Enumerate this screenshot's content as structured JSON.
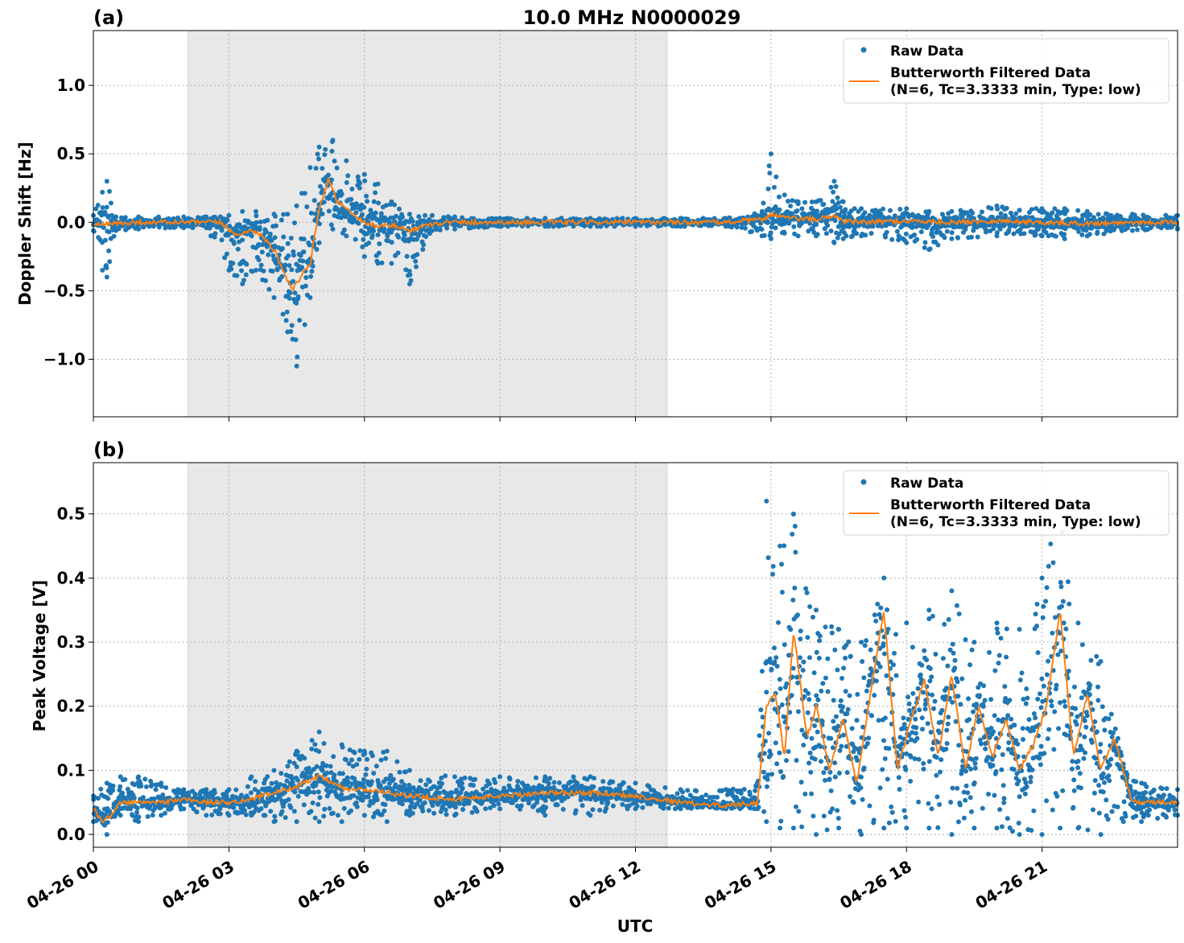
{
  "figure": {
    "title": "10.0 MHz N0000029",
    "xlabel": "UTC"
  },
  "colors": {
    "raw": "#1f77b4",
    "filtered": "#ff7f0e",
    "shade": "#e8e8e8",
    "grid": "#b0b0b0"
  },
  "chart_data": [
    {
      "panel": "(a)",
      "type": "scatter",
      "title": "10.0 MHz N0000029",
      "xlabel": "",
      "ylabel": "Doppler Shift [Hz]",
      "xlim": [
        0,
        24
      ],
      "ylim": [
        -1.42,
        1.4
      ],
      "x_ticks": [
        0,
        3,
        6,
        9,
        12,
        15,
        18,
        21
      ],
      "y_ticks": [
        -1.0,
        -0.5,
        0.0,
        0.5,
        1.0
      ],
      "y_tick_labels": [
        "−1.0",
        "−0.5",
        "0.0",
        "0.5",
        "1.0"
      ],
      "grid": true,
      "shaded_interval": [
        2.1,
        12.7
      ],
      "legend": {
        "placement": "top-right",
        "entries": [
          {
            "label": "Raw Data",
            "marker": "dot",
            "color": "#1f77b4"
          },
          {
            "label": "Butterworth Filtered Data",
            "label2": "(N=6, Tc=3.3333 min, Type: low)",
            "marker": "line",
            "color": "#ff7f0e"
          }
        ]
      },
      "series": [
        {
          "name": "Raw Data",
          "kind": "scatter-envelope",
          "x": [
            0,
            0.2,
            0.3,
            0.5,
            1,
            2,
            2.5,
            3,
            3.3,
            3.6,
            4,
            4.3,
            4.5,
            4.8,
            5,
            5.3,
            5.6,
            6,
            6.3,
            6.6,
            7,
            7.5,
            8,
            9,
            10,
            11,
            12,
            13,
            14,
            14.8,
            15,
            15.3,
            15.6,
            16,
            16.4,
            16.6,
            17,
            18,
            18.5,
            19,
            20,
            21,
            21.5,
            22,
            23,
            24
          ],
          "upper": [
            0.05,
            0.22,
            0.3,
            0.04,
            0.04,
            0.04,
            0.04,
            0.05,
            0.08,
            0.08,
            0.06,
            0.06,
            0.12,
            0.4,
            0.55,
            0.6,
            0.45,
            0.35,
            0.28,
            0.15,
            0.06,
            0.05,
            0.04,
            0.03,
            0.03,
            0.03,
            0.03,
            0.03,
            0.03,
            0.08,
            0.5,
            0.2,
            0.15,
            0.15,
            0.3,
            0.15,
            0.1,
            0.1,
            0.08,
            0.08,
            0.12,
            0.1,
            0.1,
            0.08,
            0.06,
            0.05
          ],
          "lower": [
            -0.06,
            -0.35,
            -0.4,
            -0.06,
            -0.05,
            -0.04,
            -0.04,
            -0.35,
            -0.45,
            -0.35,
            -0.55,
            -0.8,
            -1.05,
            -0.55,
            -0.15,
            -0.05,
            -0.1,
            -0.25,
            -0.3,
            -0.3,
            -0.45,
            -0.06,
            -0.05,
            -0.03,
            -0.03,
            -0.03,
            -0.03,
            -0.03,
            -0.03,
            -0.1,
            -0.12,
            -0.08,
            -0.1,
            -0.1,
            -0.15,
            -0.12,
            -0.1,
            -0.15,
            -0.2,
            -0.12,
            -0.1,
            -0.1,
            -0.12,
            -0.1,
            -0.06,
            -0.05
          ]
        },
        {
          "name": "Butterworth Filtered Data",
          "kind": "line",
          "x": [
            0,
            0.5,
            1,
            2,
            2.8,
            3,
            3.2,
            3.5,
            3.8,
            4,
            4.2,
            4.4,
            4.6,
            4.8,
            5,
            5.1,
            5.2,
            5.4,
            5.6,
            5.8,
            6,
            6.3,
            6.6,
            7,
            7.5,
            8,
            10,
            12,
            14,
            14.8,
            15,
            15.4,
            16,
            16.4,
            16.6,
            17,
            18,
            19,
            20,
            21,
            22,
            23,
            24
          ],
          "y": [
            -0.02,
            -0.01,
            0.0,
            0.0,
            0.0,
            -0.05,
            -0.1,
            -0.05,
            -0.12,
            -0.2,
            -0.35,
            -0.5,
            -0.4,
            -0.3,
            0.1,
            0.2,
            0.32,
            0.15,
            0.1,
            0.05,
            0.0,
            -0.03,
            -0.02,
            -0.06,
            -0.01,
            0.0,
            0.0,
            0.0,
            0.0,
            0.02,
            0.06,
            0.03,
            0.02,
            0.05,
            0.01,
            0.0,
            0.01,
            0.0,
            0.01,
            0.0,
            -0.01,
            0.0,
            0.0
          ]
        }
      ]
    },
    {
      "panel": "(b)",
      "type": "scatter",
      "title": "",
      "xlabel": "UTC",
      "ylabel": "Peak Voltage [V]",
      "xlim": [
        0,
        24
      ],
      "ylim": [
        -0.02,
        0.58
      ],
      "x_ticks": [
        0,
        3,
        6,
        9,
        12,
        15,
        18,
        21
      ],
      "x_tick_labels": [
        "04-26 00",
        "04-26 03",
        "04-26 06",
        "04-26 09",
        "04-26 12",
        "04-26 15",
        "04-26 18",
        "04-26 21"
      ],
      "y_ticks": [
        0.0,
        0.1,
        0.2,
        0.3,
        0.4,
        0.5
      ],
      "y_tick_labels": [
        "0.0",
        "0.1",
        "0.2",
        "0.3",
        "0.4",
        "0.5"
      ],
      "grid": true,
      "shaded_interval": [
        2.1,
        12.7
      ],
      "legend": {
        "placement": "top-right",
        "entries": [
          {
            "label": "Raw Data",
            "marker": "dot",
            "color": "#1f77b4"
          },
          {
            "label": "Butterworth Filtered Data",
            "label2": "(N=6, Tc=3.3333 min, Type: low)",
            "marker": "line",
            "color": "#ff7f0e"
          }
        ]
      },
      "series": [
        {
          "name": "Raw Data",
          "kind": "scatter-envelope",
          "x": [
            0,
            0.3,
            0.6,
            1,
            1.5,
            2,
            2.5,
            3,
            3.5,
            4,
            4.5,
            5,
            5.5,
            6,
            6.5,
            7,
            8,
            9,
            10,
            11,
            12,
            13,
            14,
            14.7,
            14.9,
            15.2,
            15.5,
            16,
            16.5,
            17,
            17.5,
            18,
            18.5,
            19,
            19.5,
            20,
            20.5,
            21,
            21.4,
            21.8,
            22.3,
            22.8,
            23.2,
            24
          ],
          "upper": [
            0.06,
            0.08,
            0.09,
            0.09,
            0.08,
            0.07,
            0.07,
            0.07,
            0.09,
            0.1,
            0.13,
            0.16,
            0.14,
            0.13,
            0.13,
            0.1,
            0.09,
            0.09,
            0.09,
            0.09,
            0.08,
            0.07,
            0.07,
            0.08,
            0.52,
            0.45,
            0.5,
            0.35,
            0.32,
            0.3,
            0.4,
            0.33,
            0.35,
            0.38,
            0.3,
            0.33,
            0.32,
            0.4,
            0.52,
            0.33,
            0.27,
            0.11,
            0.08,
            0.07
          ],
          "lower": [
            0.02,
            0.0,
            0.03,
            0.02,
            0.03,
            0.04,
            0.03,
            0.03,
            0.03,
            0.02,
            0.02,
            0.02,
            0.02,
            0.03,
            0.02,
            0.03,
            0.03,
            0.04,
            0.03,
            0.03,
            0.04,
            0.04,
            0.04,
            0.04,
            0.02,
            0.01,
            0.01,
            0.0,
            0.01,
            0.0,
            0.01,
            0.01,
            0.01,
            0.0,
            0.01,
            0.01,
            0.0,
            0.0,
            0.01,
            0.01,
            0.0,
            0.02,
            0.02,
            0.03
          ]
        },
        {
          "name": "Butterworth Filtered Data",
          "kind": "line",
          "x": [
            0,
            0.2,
            0.4,
            0.6,
            1,
            1.5,
            2,
            2.5,
            3,
            3.5,
            4,
            4.5,
            5,
            5.3,
            5.6,
            6,
            6.5,
            7,
            8,
            9,
            10,
            11,
            12,
            13,
            14,
            14.7,
            14.9,
            15.1,
            15.3,
            15.5,
            15.8,
            16,
            16.3,
            16.6,
            16.9,
            17.2,
            17.5,
            17.8,
            18.1,
            18.4,
            18.7,
            19,
            19.3,
            19.6,
            19.9,
            20.2,
            20.5,
            20.8,
            21.1,
            21.4,
            21.7,
            22,
            22.3,
            22.6,
            23,
            23.5,
            24
          ],
          "y": [
            0.04,
            0.02,
            0.03,
            0.05,
            0.05,
            0.05,
            0.055,
            0.05,
            0.05,
            0.055,
            0.065,
            0.075,
            0.09,
            0.08,
            0.07,
            0.07,
            0.065,
            0.06,
            0.055,
            0.06,
            0.065,
            0.065,
            0.06,
            0.05,
            0.045,
            0.05,
            0.2,
            0.22,
            0.12,
            0.32,
            0.15,
            0.2,
            0.1,
            0.18,
            0.08,
            0.22,
            0.35,
            0.1,
            0.18,
            0.24,
            0.12,
            0.25,
            0.1,
            0.2,
            0.12,
            0.18,
            0.1,
            0.14,
            0.2,
            0.35,
            0.12,
            0.22,
            0.1,
            0.15,
            0.05,
            0.05,
            0.05
          ]
        }
      ]
    }
  ]
}
